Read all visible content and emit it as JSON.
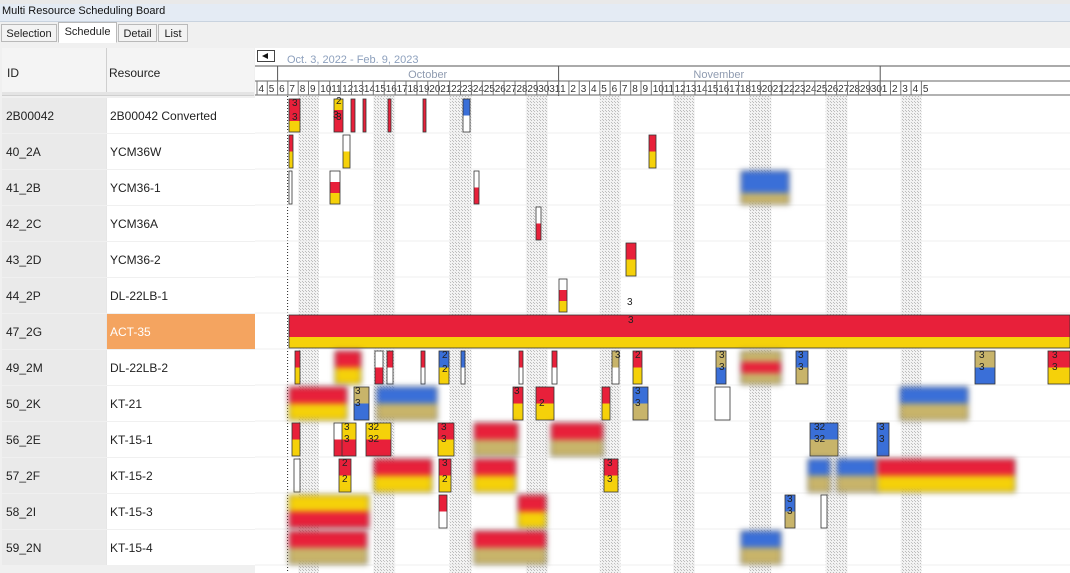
{
  "window": {
    "title": "Multi Resource Scheduling Board"
  },
  "tabs": [
    {
      "label": "Selection"
    },
    {
      "label": "Schedule"
    },
    {
      "label": "Detail"
    },
    {
      "label": "List"
    }
  ],
  "grid": {
    "headers": {
      "id": "ID",
      "resource": "Resource"
    },
    "rows": [
      {
        "id": "2B00042",
        "resource": "2B00042 Converted"
      },
      {
        "id": "40_2A",
        "resource": "YCM36W"
      },
      {
        "id": "41_2B",
        "resource": "YCM36-1"
      },
      {
        "id": "42_2C",
        "resource": "YCM36A"
      },
      {
        "id": "43_2D",
        "resource": "YCM36-2"
      },
      {
        "id": "44_2P",
        "resource": "DL-22LB-1"
      },
      {
        "id": "47_2G",
        "resource": "ACT-35",
        "selected": true
      },
      {
        "id": "49_2M",
        "resource": "DL-22LB-2"
      },
      {
        "id": "50_2K",
        "resource": "KT-21"
      },
      {
        "id": "56_2E",
        "resource": "KT-15-1"
      },
      {
        "id": "57_2F",
        "resource": "KT-15-2"
      },
      {
        "id": "58_2I",
        "resource": "KT-15-3"
      },
      {
        "id": "59_2N",
        "resource": "KT-15-4"
      }
    ]
  },
  "schedule": {
    "range_label": "Oct. 3, 2022 - Feb. 9, 2023",
    "months": [
      "October",
      "November"
    ],
    "days_start_sep": [
      4,
      5
    ],
    "days_oct": [
      6,
      7,
      8,
      9,
      10,
      11,
      12,
      13,
      14,
      15,
      16,
      17,
      18,
      19,
      20,
      21,
      22,
      23,
      24,
      25,
      26,
      27,
      28,
      29,
      30,
      31
    ],
    "days_nov": [
      1,
      2,
      3,
      4,
      5,
      6,
      7,
      8,
      9,
      10,
      11,
      12,
      13,
      14,
      15,
      16,
      17,
      18,
      19,
      20,
      21,
      22,
      23,
      24,
      25,
      26,
      27,
      28,
      29,
      30
    ],
    "days_dec": [
      1,
      2,
      3,
      4,
      5
    ],
    "colors": {
      "red": "#e8203a",
      "yellow": "#f5d10a",
      "blue": "#3a6fd8",
      "tan": "#c8b46a",
      "hatch": "#d9d9d9"
    }
  }
}
